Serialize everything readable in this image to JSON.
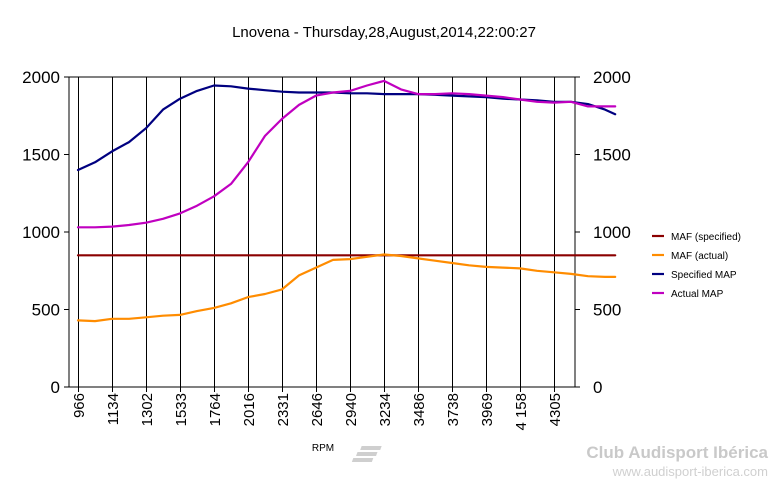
{
  "chart_data": {
    "type": "line",
    "title": "Lnovena - Thursday,28,August,2014,22:00:27",
    "xlabel": "RPM",
    "ylabel": "",
    "ylim": [
      0,
      2000
    ],
    "yticks": [
      "0",
      "500",
      "1000",
      "1500",
      "2000"
    ],
    "categories": [
      "966",
      "1134",
      "1302",
      "1533",
      "1764",
      "2016",
      "2331",
      "2646",
      "2940",
      "3234",
      "3486",
      "3738",
      "3969",
      "4 158",
      "4305"
    ],
    "grid": "vertical",
    "legend_position": "right",
    "series": [
      {
        "name": "MAF (specified)",
        "color": "#8b0000",
        "x": [
          0,
          15.8
        ],
        "y": [
          850,
          850
        ]
      },
      {
        "name": "MAF (actual)",
        "color": "#ff8c00",
        "x": [
          0,
          0.5,
          1,
          1.5,
          2,
          2.5,
          3,
          3.5,
          4,
          4.5,
          5,
          5.5,
          6,
          6.5,
          7,
          7.5,
          8,
          8.5,
          9,
          9.5,
          10,
          10.5,
          11,
          11.5,
          12,
          12.5,
          13,
          13.5,
          14,
          14.5,
          15,
          15.5,
          15.8
        ],
        "y": [
          430,
          425,
          440,
          440,
          450,
          460,
          465,
          490,
          510,
          540,
          580,
          600,
          630,
          720,
          770,
          820,
          825,
          840,
          855,
          845,
          830,
          815,
          800,
          785,
          775,
          770,
          765,
          750,
          740,
          730,
          715,
          710,
          710
        ]
      },
      {
        "name": "Specified MAP",
        "color": "#000080",
        "x": [
          0,
          0.5,
          1,
          1.5,
          2,
          2.5,
          3,
          3.5,
          4,
          4.5,
          5,
          5.5,
          6,
          6.5,
          7,
          7.5,
          8,
          8.5,
          9,
          9.5,
          10,
          10.5,
          11,
          11.5,
          12,
          12.5,
          13,
          13.5,
          14,
          14.5,
          15,
          15.5,
          15.8
        ],
        "y": [
          1400,
          1450,
          1520,
          1580,
          1670,
          1790,
          1860,
          1910,
          1945,
          1940,
          1925,
          1915,
          1905,
          1900,
          1900,
          1900,
          1895,
          1895,
          1890,
          1890,
          1890,
          1885,
          1880,
          1875,
          1870,
          1860,
          1855,
          1850,
          1840,
          1840,
          1825,
          1790,
          1760
        ]
      },
      {
        "name": "Actual MAP",
        "color": "#c000c0",
        "x": [
          0,
          0.5,
          1,
          1.5,
          2,
          2.5,
          3,
          3.5,
          4,
          4.5,
          5,
          5.5,
          6,
          6.5,
          7,
          7.5,
          8,
          8.5,
          9,
          9.5,
          10,
          10.5,
          11,
          11.5,
          12,
          12.5,
          13,
          13.5,
          14,
          14.5,
          15,
          15.5,
          15.8
        ],
        "y": [
          1030,
          1030,
          1035,
          1045,
          1060,
          1085,
          1120,
          1170,
          1230,
          1310,
          1450,
          1620,
          1730,
          1820,
          1880,
          1900,
          1910,
          1945,
          1975,
          1920,
          1890,
          1890,
          1895,
          1890,
          1880,
          1870,
          1855,
          1840,
          1835,
          1840,
          1810,
          1810,
          1810
        ]
      }
    ],
    "watermark": {
      "line1": "Club Audisport Ibérica",
      "line2": "www.audisport-iberica.com"
    }
  }
}
